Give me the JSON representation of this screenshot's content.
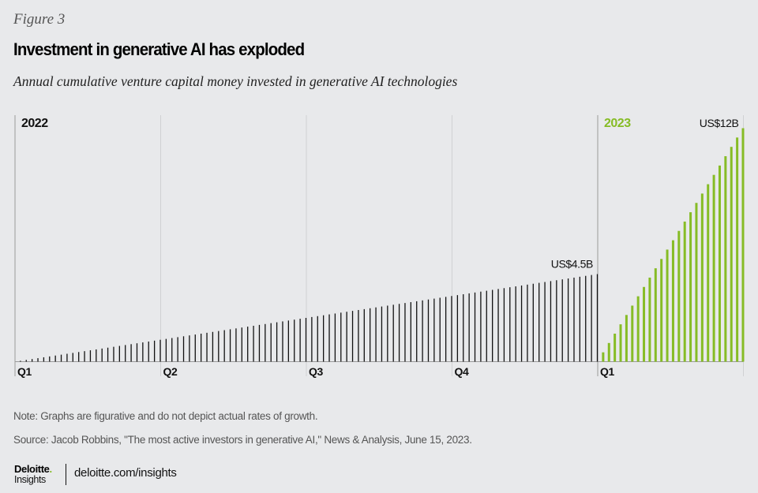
{
  "figure_label": "Figure 3",
  "title": "Investment in generative AI has exploded",
  "subtitle": "Annual cumulative venture capital money invested in generative AI technologies",
  "chart_data": {
    "type": "bar",
    "title": "Investment in generative AI has exploded",
    "subtitle": "Annual cumulative venture capital money invested in generative AI technologies",
    "xlabel": "",
    "ylabel": "",
    "unit": "US$ billions",
    "grid": true,
    "ylim": [
      0,
      12
    ],
    "periods": [
      {
        "year": "2022",
        "color": "#111111",
        "label_color": "#111111",
        "quarters": [
          "Q1",
          "Q2",
          "Q3",
          "Q4"
        ],
        "bar_count": 100,
        "end_value": 4.5,
        "end_label": "US$4.5B",
        "growth": "linear",
        "values": [
          0.045,
          0.09,
          0.135,
          0.18,
          0.225,
          0.27,
          0.315,
          0.36,
          0.405,
          0.45,
          0.495,
          0.54,
          0.585,
          0.63,
          0.675,
          0.72,
          0.765,
          0.81,
          0.855,
          0.9,
          0.945,
          0.99,
          1.035,
          1.08,
          1.125,
          1.17,
          1.215,
          1.26,
          1.305,
          1.35,
          1.395,
          1.44,
          1.485,
          1.53,
          1.575,
          1.62,
          1.665,
          1.71,
          1.755,
          1.8,
          1.845,
          1.89,
          1.935,
          1.98,
          2.025,
          2.07,
          2.115,
          2.16,
          2.205,
          2.25,
          2.295,
          2.34,
          2.385,
          2.43,
          2.475,
          2.52,
          2.565,
          2.61,
          2.655,
          2.7,
          2.745,
          2.79,
          2.835,
          2.88,
          2.925,
          2.97,
          3.015,
          3.06,
          3.105,
          3.15,
          3.195,
          3.24,
          3.285,
          3.33,
          3.375,
          3.42,
          3.465,
          3.51,
          3.555,
          3.6,
          3.645,
          3.69,
          3.735,
          3.78,
          3.825,
          3.87,
          3.915,
          3.96,
          4.005,
          4.05,
          4.095,
          4.14,
          4.185,
          4.23,
          4.275,
          4.32,
          4.365,
          4.41,
          4.455,
          4.5
        ]
      },
      {
        "year": "2023",
        "color": "#86bc25",
        "label_color": "#86bc25",
        "quarters": [
          "Q1"
        ],
        "bar_count": 25,
        "end_value": 12,
        "end_label": "US$12B",
        "growth": "linear",
        "values": [
          0.48,
          0.96,
          1.44,
          1.92,
          2.4,
          2.88,
          3.36,
          3.84,
          4.32,
          4.8,
          5.28,
          5.76,
          6.24,
          6.72,
          7.2,
          7.68,
          8.16,
          8.64,
          9.12,
          9.6,
          10.08,
          10.56,
          11.04,
          11.52,
          12
        ]
      }
    ]
  },
  "note": "Note: Graphs are figurative and do not depict actual rates of growth.",
  "source": "Source: Jacob Robbins, \"The most active investors in generative AI,\" News & Analysis, June 15, 2023.",
  "footer": {
    "brand_name": "Deloitte",
    "brand_dot": ".",
    "brand_sub": "Insights",
    "url": "deloitte.com/insights"
  }
}
